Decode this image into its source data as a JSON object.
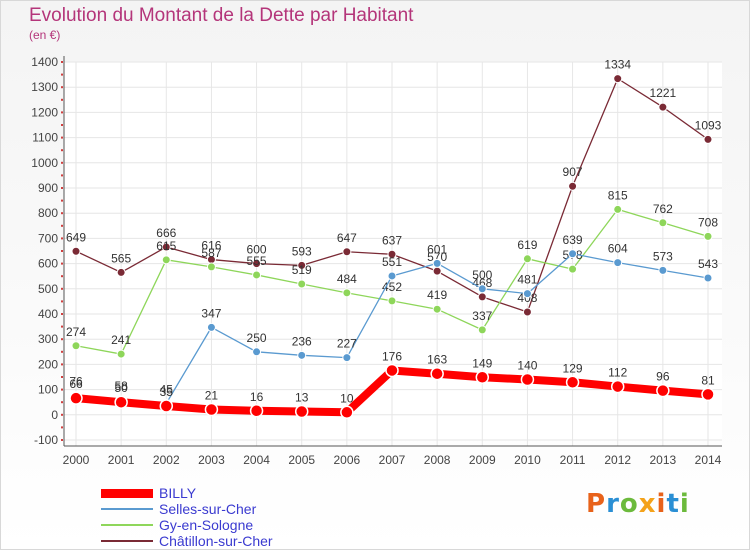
{
  "header": {
    "title": "Evolution du Montant de la Dette par Habitant",
    "unit": "(en €)"
  },
  "logo": {
    "letters": [
      "P",
      "r",
      "o",
      "x",
      "i",
      "t",
      "i"
    ],
    "colors": [
      "#e8621a",
      "#2a8fd4",
      "#6cba3c",
      "#f4a21a",
      "#e8621a",
      "#2a8fd4",
      "#6cba3c"
    ]
  },
  "chart_data": {
    "type": "line",
    "title": "Evolution du Montant de la Dette par Habitant",
    "ylabel": "(en €)",
    "xlabel": "",
    "x": [
      "2000",
      "2001",
      "2002",
      "2003",
      "2004",
      "2005",
      "2006",
      "2007",
      "2008",
      "2009",
      "2010",
      "2011",
      "2012",
      "2013",
      "2014"
    ],
    "ylim": [
      -100,
      1400
    ],
    "yticks": [
      "-100",
      "0",
      "100",
      "200",
      "300",
      "400",
      "500",
      "600",
      "700",
      "800",
      "900",
      "1000",
      "1100",
      "1200",
      "1300",
      "1400"
    ],
    "grid": true,
    "legend_position": "bottom-left",
    "series": [
      {
        "name": "Châtillon-sur-Cher",
        "color": "#7a2a35",
        "width": 1.3,
        "marker": 4,
        "values": [
          649,
          565,
          666,
          616,
          600,
          593,
          647,
          637,
          570,
          468,
          408,
          907,
          1334,
          1221,
          1093
        ],
        "labels": [
          "649",
          "565",
          "666",
          "616",
          "600",
          "593",
          "647",
          "637",
          "570",
          "468",
          "408",
          "907",
          "1334",
          "1221",
          "1093"
        ]
      },
      {
        "name": "Gy-en-Sologne",
        "color": "#8ed65a",
        "width": 1.3,
        "marker": 4,
        "values": [
          274,
          241,
          615,
          587,
          555,
          519,
          484,
          452,
          419,
          337,
          619,
          578,
          815,
          762,
          708
        ],
        "labels": [
          "274",
          "241",
          "615",
          "587",
          "555",
          "519",
          "484",
          "452",
          "419",
          "337",
          "619",
          "578",
          "815",
          "762",
          "708"
        ]
      },
      {
        "name": "Selles-sur-Cher",
        "color": "#5a9ad0",
        "width": 1.3,
        "marker": 4,
        "values": [
          76,
          58,
          45,
          347,
          250,
          236,
          227,
          551,
          601,
          500,
          481,
          639,
          604,
          573,
          543
        ],
        "labels": [
          "76",
          "58",
          "45",
          "347",
          "250",
          "236",
          "227",
          "551",
          "601",
          "500",
          "481",
          "639",
          "604",
          "573",
          "543"
        ]
      },
      {
        "name": "BILLY",
        "color": "#ff0000",
        "width": 8,
        "marker": 6,
        "values": [
          66,
          50,
          35,
          21,
          16,
          13,
          10,
          176,
          163,
          149,
          140,
          129,
          112,
          96,
          81
        ],
        "labels": [
          "66",
          "50",
          "35",
          "21",
          "16",
          "13",
          "10",
          "176",
          "163",
          "149",
          "140",
          "129",
          "112",
          "96",
          "81"
        ]
      }
    ]
  }
}
